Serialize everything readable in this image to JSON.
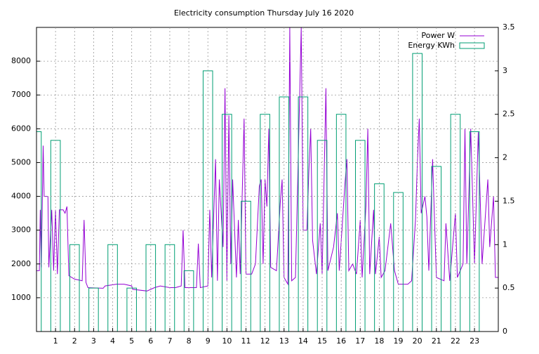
{
  "chart_data": {
    "type": "line",
    "title": "Electricity consumption Thursday July 16 2020",
    "xlim": [
      0,
      24.25
    ],
    "xticks": [
      1,
      2,
      3,
      4,
      5,
      6,
      7,
      8,
      9,
      10,
      11,
      12,
      13,
      14,
      15,
      16,
      17,
      18,
      19,
      20,
      21,
      22,
      23
    ],
    "ylim": [
      0,
      9000
    ],
    "yticks": [
      1000,
      2000,
      3000,
      4000,
      5000,
      6000,
      7000,
      8000
    ],
    "y2lim": [
      0,
      3.5
    ],
    "y2ticks": [
      0,
      0.5,
      1,
      1.5,
      2,
      2.5,
      3,
      3.5
    ],
    "grid": true,
    "legend": "top-right",
    "series": [
      {
        "name": "Power W",
        "color": "#9400d3",
        "x": [
          0,
          0.15,
          0.2,
          0.25,
          0.35,
          0.4,
          0.6,
          0.65,
          0.8,
          0.9,
          1.0,
          1.1,
          1.2,
          1.4,
          1.5,
          1.6,
          1.7,
          2.0,
          2.4,
          2.5,
          2.6,
          2.7,
          3.5,
          3.6,
          4.2,
          4.6,
          5.0,
          5.05,
          5.8,
          6.2,
          6.5,
          7.0,
          7.3,
          7.6,
          7.7,
          7.8,
          8.4,
          8.5,
          8.6,
          9.0,
          9.1,
          9.2,
          9.4,
          9.5,
          9.6,
          9.8,
          9.9,
          10.0,
          10.1,
          10.2,
          10.3,
          10.5,
          10.6,
          10.7,
          10.9,
          11.0,
          11.3,
          11.5,
          11.7,
          11.8,
          11.9,
          12.0,
          12.1,
          12.2,
          12.3,
          12.6,
          12.8,
          12.9,
          13.0,
          13.2,
          13.3,
          13.4,
          13.6,
          13.7,
          13.9,
          14.0,
          14.2,
          14.3,
          14.4,
          14.5,
          14.7,
          14.9,
          15.0,
          15.2,
          15.3,
          15.6,
          15.8,
          15.9,
          16.2,
          16.3,
          16.4,
          16.6,
          16.8,
          17.0,
          17.1,
          17.3,
          17.4,
          17.5,
          17.7,
          17.8,
          18.0,
          18.1,
          18.3,
          18.6,
          18.8,
          19.0,
          19.5,
          19.7,
          19.9,
          20.0,
          20.1,
          20.2,
          20.4,
          20.5,
          20.6,
          20.8,
          20.9,
          21.0,
          21.4,
          21.5,
          21.7,
          22.0,
          22.1,
          22.4,
          22.5,
          22.6,
          22.8,
          23.0,
          23.2,
          23.4,
          23.7,
          23.8,
          24.0,
          24.1,
          24.25
        ],
        "values": [
          1800,
          1800,
          3600,
          1900,
          5500,
          4000,
          4000,
          1900,
          3600,
          1800,
          3600,
          1700,
          3600,
          3600,
          3500,
          3700,
          1650,
          1550,
          1500,
          3300,
          1450,
          1300,
          1280,
          1350,
          1400,
          1400,
          1350,
          1250,
          1200,
          1300,
          1350,
          1300,
          1300,
          1350,
          3000,
          1300,
          1300,
          2600,
          1300,
          1350,
          3600,
          1600,
          5100,
          1500,
          4500,
          2500,
          7200,
          1500,
          6400,
          2000,
          4500,
          1600,
          3300,
          1700,
          6300,
          1700,
          1700,
          2000,
          4300,
          4500,
          2000,
          4500,
          3700,
          6000,
          1900,
          1800,
          3800,
          4500,
          1600,
          1400,
          9000,
          1500,
          1600,
          4000,
          9000,
          3000,
          3000,
          4700,
          6000,
          2700,
          1700,
          3200,
          1700,
          7200,
          1800,
          2500,
          3500,
          1800,
          4400,
          5100,
          1800,
          2000,
          1700,
          3300,
          1600,
          3700,
          6000,
          1700,
          3600,
          1700,
          2800,
          1600,
          1800,
          3200,
          1800,
          1400,
          1400,
          1500,
          3300,
          5000,
          6300,
          3500,
          4000,
          3400,
          1800,
          5100,
          3300,
          1600,
          1500,
          3200,
          1500,
          3500,
          1600,
          2000,
          6000,
          2000,
          6000,
          2000,
          5900,
          2000,
          4500,
          2500,
          4000,
          1600,
          1600
        ]
      },
      {
        "name": "Energy KWh",
        "color": "#009e73",
        "type": "bar",
        "axis": "y2",
        "x": [
          0,
          1,
          2,
          3,
          4,
          5,
          6,
          7,
          8,
          9,
          10,
          11,
          12,
          13,
          14,
          15,
          16,
          17,
          18,
          19,
          20,
          21,
          22,
          23
        ],
        "values": [
          2.3,
          2.2,
          1.0,
          0.5,
          1.0,
          0.5,
          1.0,
          1.0,
          0.7,
          3.0,
          2.5,
          1.5,
          2.5,
          2.7,
          2.7,
          2.2,
          2.5,
          2.2,
          1.7,
          1.6,
          3.2,
          1.9,
          2.5,
          2.3
        ]
      }
    ]
  }
}
